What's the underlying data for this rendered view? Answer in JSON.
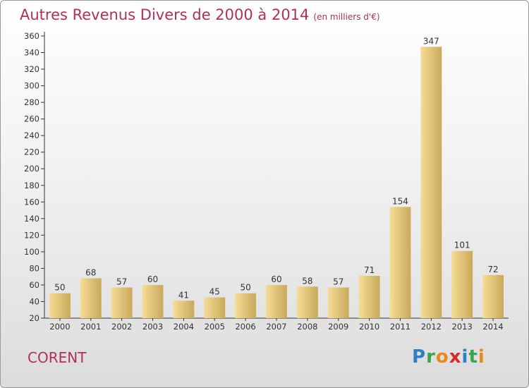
{
  "header": {
    "title": "Autres Revenus Divers de 2000 à 2014",
    "unit": "(en milliers d'€)"
  },
  "footer": {
    "place": "CORENT",
    "logo_letters": [
      "P",
      "r",
      "o",
      "x",
      "i",
      "t",
      "i"
    ],
    "logo_colors": [
      "#2f7fc4",
      "#3aa64a",
      "#e88a1a",
      "#d42a2a",
      "#2f7fc4",
      "#3aa64a",
      "#e88a1a"
    ]
  },
  "chart_data": {
    "type": "bar",
    "title": "Autres Revenus Divers de 2000 à 2014",
    "subtitle": "(en milliers d'€)",
    "categories": [
      "2000",
      "2001",
      "2002",
      "2003",
      "2004",
      "2005",
      "2006",
      "2007",
      "2008",
      "2009",
      "2010",
      "2011",
      "2012",
      "2013",
      "2014"
    ],
    "values": [
      50,
      68,
      57,
      60,
      41,
      45,
      50,
      60,
      58,
      57,
      71,
      154,
      347,
      101,
      72
    ],
    "ylim": [
      20,
      360
    ],
    "yticks": [
      20,
      40,
      60,
      80,
      100,
      120,
      140,
      160,
      180,
      200,
      220,
      240,
      260,
      280,
      300,
      320,
      340,
      360
    ],
    "grid": false,
    "colors": {
      "bar_light": "#f6dc96",
      "bar_dark": "#c9a95a",
      "axis": "#333333",
      "text": "#333333"
    }
  }
}
